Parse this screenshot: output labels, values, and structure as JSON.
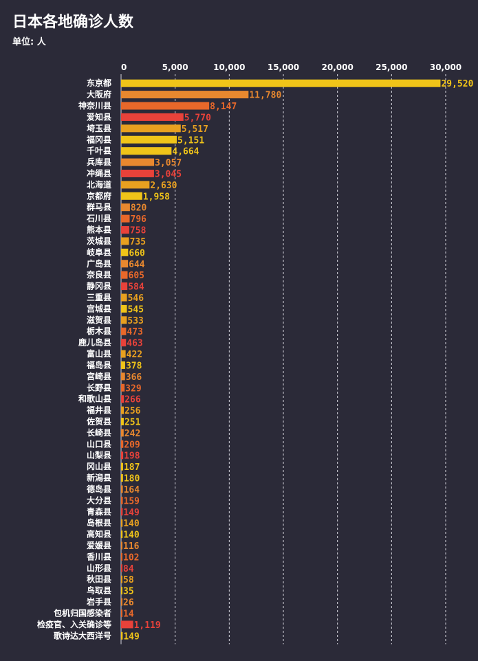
{
  "title": "日本各地确诊人数",
  "unit": "单位: 人",
  "colors": [
    "#f0c419",
    "#e8882f",
    "#e8682a",
    "#e8423a",
    "#e8a020",
    "#f0c419"
  ],
  "chart_data": {
    "type": "bar",
    "orientation": "horizontal",
    "title": "日本各地确诊人数",
    "xlabel": "",
    "ylabel": "",
    "xlim": [
      0,
      30000
    ],
    "x_ticks": [
      0,
      5000,
      10000,
      15000,
      20000,
      25000,
      30000
    ],
    "x_tick_labels": [
      "0",
      "5,000",
      "10,000",
      "15,000",
      "20,000",
      "25,000",
      "30,000"
    ],
    "grid": true,
    "categories": [
      "东京都",
      "大阪府",
      "神奈川县",
      "爱知县",
      "埼玉县",
      "福冈县",
      "千叶县",
      "兵库县",
      "冲绳县",
      "北海道",
      "京都府",
      "群马县",
      "石川县",
      "熊本县",
      "茨城县",
      "岐阜县",
      "广岛县",
      "奈良县",
      "静冈县",
      "三重县",
      "宫城县",
      "滋贺县",
      "栃木县",
      "鹿儿岛县",
      "富山县",
      "福岛县",
      "宫崎县",
      "长野县",
      "和歌山县",
      "福井县",
      "佐贺县",
      "长崎县",
      "山口县",
      "山梨县",
      "冈山县",
      "新潟县",
      "德岛县",
      "大分县",
      "青森县",
      "岛根县",
      "高知县",
      "爱媛县",
      "香川县",
      "山形县",
      "秋田县",
      "鸟取县",
      "岩手县",
      "包机归国感染者",
      "检疫官、入关确诊等",
      "歌诗达大西洋号"
    ],
    "values": [
      29520,
      11780,
      8147,
      5770,
      5517,
      5151,
      4664,
      3057,
      3045,
      2630,
      1958,
      820,
      796,
      758,
      735,
      660,
      644,
      605,
      584,
      546,
      545,
      533,
      473,
      463,
      422,
      378,
      366,
      329,
      266,
      256,
      251,
      242,
      209,
      198,
      187,
      180,
      164,
      159,
      149,
      140,
      140,
      116,
      102,
      84,
      58,
      35,
      26,
      14,
      1119,
      149
    ],
    "value_labels": [
      "29,520",
      "11,780",
      "8,147",
      "5,770",
      "5,517",
      "5,151",
      "4,664",
      "3,057",
      "3,045",
      "2,630",
      "1,958",
      "820",
      "796",
      "758",
      "735",
      "660",
      "644",
      "605",
      "584",
      "546",
      "545",
      "533",
      "473",
      "463",
      "422",
      "378",
      "366",
      "329",
      "266",
      "256",
      "251",
      "242",
      "209",
      "198",
      "187",
      "180",
      "164",
      "159",
      "149",
      "140",
      "140",
      "116",
      "102",
      "84",
      "58",
      "35",
      "26",
      "14",
      "1,119",
      "149"
    ],
    "bar_colors": [
      "#f0c419",
      "#e8882f",
      "#e8682a",
      "#e8423a",
      "#e8a020",
      "#f0c419",
      "#f0c419",
      "#e8882f",
      "#e8423a",
      "#e8a020",
      "#f0c419",
      "#e8882f",
      "#e8682a",
      "#e8423a",
      "#e8a020",
      "#f0c419",
      "#e8882f",
      "#e8682a",
      "#e8423a",
      "#e8a020",
      "#f0c419",
      "#e8a020",
      "#e8682a",
      "#e8423a",
      "#e8a020",
      "#f0c419",
      "#e8882f",
      "#e8682a",
      "#e8423a",
      "#e8a020",
      "#f0c419",
      "#e8882f",
      "#e8682a",
      "#e8423a",
      "#f0c419",
      "#f0c419",
      "#e8882f",
      "#e8682a",
      "#e8423a",
      "#e8a020",
      "#f0c419",
      "#e8882f",
      "#e8682a",
      "#e8423a",
      "#e8a020",
      "#f0c419",
      "#e8882f",
      "#e8682a",
      "#e8423a",
      "#f0c419"
    ]
  }
}
